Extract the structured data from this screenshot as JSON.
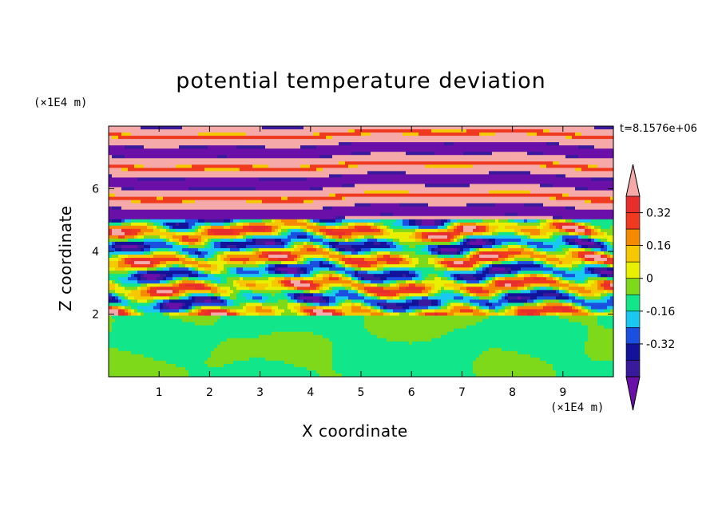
{
  "chart_data": {
    "type": "heatmap",
    "title": "potential temperature deviation",
    "xlabel": "X coordinate",
    "ylabel": "Z coordinate",
    "x_unit": "(×1E4 m)",
    "y_unit": "(×1E4 m)",
    "time_label": "t=8.1576e+06",
    "xlim": [
      0,
      10
    ],
    "ylim": [
      0,
      8
    ],
    "x_ticks": [
      "1",
      "2",
      "3",
      "4",
      "5",
      "6",
      "7",
      "8",
      "9"
    ],
    "y_ticks": [
      "2",
      "4",
      "6"
    ],
    "colorbar": {
      "levels": [
        -0.48,
        -0.4,
        -0.32,
        -0.24,
        -0.16,
        -0.08,
        0,
        0.08,
        0.16,
        0.24,
        0.32,
        0.4,
        0.48
      ],
      "tick_labels": [
        "0.32",
        "0.16",
        "0",
        "-0.16",
        "-0.32"
      ],
      "colors": [
        "#6a0fa8",
        "#3a1a9c",
        "#12129a",
        "#1a4fe0",
        "#19c8f0",
        "#12e68a",
        "#7ed91a",
        "#e8f000",
        "#f5c800",
        "#f58a00",
        "#f03a20",
        "#e82d2d",
        "#f5a9a9"
      ]
    },
    "layers": [
      {
        "z_from": 0,
        "z_to": 2.0,
        "description_colors": [
          "#12e68a",
          "#7ed91a"
        ]
      },
      {
        "z_from": 2.0,
        "z_to": 5.0,
        "description_colors": [
          "#6a0fa8",
          "#12129a",
          "#19c8f0",
          "#12e68a",
          "#e8f000",
          "#f03a20",
          "#f5a9a9"
        ]
      },
      {
        "z_from": 5.0,
        "z_to": 8.0,
        "description_colors": [
          "#f5a9a9",
          "#6a0fa8"
        ]
      }
    ]
  }
}
